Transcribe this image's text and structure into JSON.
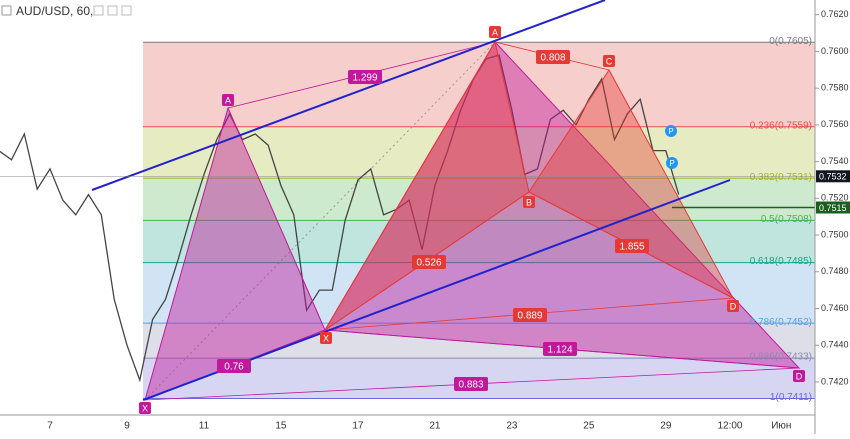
{
  "chart_data": {
    "type": "line",
    "title": "AUD/USD, 60,",
    "color": "#444444",
    "categories": [
      null,
      null,
      null,
      null,
      "7",
      null,
      null,
      null,
      null,
      null,
      "9",
      null,
      null,
      null,
      null,
      null,
      "11",
      null,
      null,
      null,
      null,
      null,
      "15",
      null,
      null,
      null,
      null,
      null,
      "17",
      null,
      null,
      null,
      null,
      null,
      "21",
      null,
      null,
      null,
      null,
      null,
      "23",
      null,
      null,
      null,
      null,
      null,
      "25",
      null,
      null,
      null,
      null,
      null,
      "29",
      null,
      null,
      null,
      null,
      "12:00",
      null,
      null,
      null,
      "Июн"
    ],
    "values": [
      0.7546,
      0.7541,
      0.7555,
      0.7525,
      0.7536,
      0.7519,
      0.7511,
      0.7522,
      0.7511,
      0.7465,
      0.744,
      0.7421,
      0.7454,
      0.7465,
      0.7487,
      0.7511,
      0.7533,
      0.7552,
      0.7566,
      0.7552,
      0.7555,
      0.7549,
      0.7527,
      0.7511,
      0.7459,
      0.747,
      0.747,
      0.7508,
      0.753,
      0.7536,
      0.7511,
      0.7514,
      0.7519,
      0.7492,
      0.7527,
      0.7546,
      0.7568,
      0.7585,
      0.7596,
      0.7598,
      0.7568,
      0.7533,
      0.7536,
      0.7563,
      0.7568,
      0.756,
      0.7574,
      0.7585,
      0.7552,
      0.7566,
      0.7574,
      0.7546,
      0.7546,
      0.7522,
      null,
      null,
      null,
      null,
      null,
      null,
      null,
      null
    ],
    "ylim": [
      0.7402,
      0.7628
    ],
    "yticks": [
      {
        "value": 0.742,
        "label": "0.7420"
      },
      {
        "value": 0.744,
        "label": "0.7440"
      },
      {
        "value": 0.746,
        "label": "0.7460"
      },
      {
        "value": 0.748,
        "label": "0.7480"
      },
      {
        "value": 0.75,
        "label": "0.7500"
      },
      {
        "value": 0.752,
        "label": "0.7520"
      },
      {
        "value": 0.754,
        "label": "0.7540"
      },
      {
        "value": 0.756,
        "label": "0.7560"
      },
      {
        "value": 0.758,
        "label": "0.7580"
      },
      {
        "value": 0.76,
        "label": "0.7600"
      },
      {
        "value": 0.762,
        "label": "0.7620"
      }
    ],
    "fib_levels": [
      {
        "value": 0.7605,
        "label": "0(0.7605)",
        "color": "#787b86"
      },
      {
        "value": 0.7559,
        "label": "0.236(0.7559)",
        "color": "#e0524a"
      },
      {
        "value": 0.7531,
        "label": "0.382(0.7531)",
        "color": "#a5b820"
      },
      {
        "value": 0.7508,
        "label": "0.5(0.7508)",
        "color": "#4caf50"
      },
      {
        "value": 0.7485,
        "label": "0.618(0.7485)",
        "color": "#1aa38a"
      },
      {
        "value": 0.7452,
        "label": "0.786(0.7452)",
        "color": "#5a9fe0"
      },
      {
        "value": 0.7433,
        "label": "0.886(0.7433)",
        "color": "#8a8ab0"
      },
      {
        "value": 0.7411,
        "label": "1(0.7411)",
        "color": "#6a6ad0"
      }
    ],
    "price_labels": [
      0.7532,
      0.7515
    ],
    "pattern_points": [
      [
        "X",
        "A",
        "B",
        "C",
        "D"
      ],
      [
        "X",
        "A",
        "B",
        "C",
        "D"
      ]
    ],
    "ratios": [
      [
        "1.299",
        "0.76",
        "1.124",
        "0.883"
      ],
      [
        "0.808",
        "0.526",
        "1.855",
        "0.889"
      ]
    ],
    "markers": [
      "P",
      "P"
    ]
  }
}
